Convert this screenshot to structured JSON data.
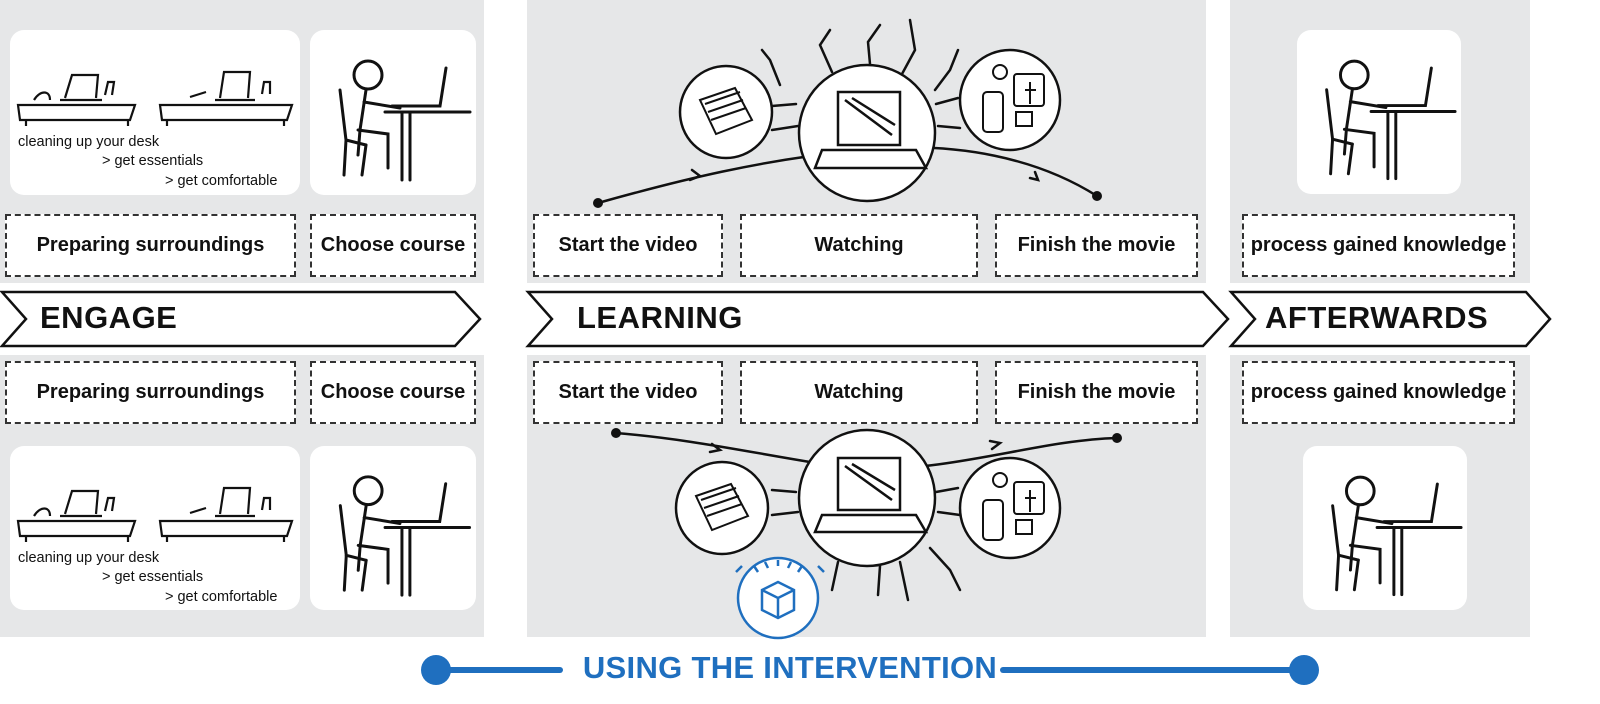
{
  "phases": {
    "engage": "ENGAGE",
    "learning": "LEARNING",
    "afterwards": "AFTERWARDS"
  },
  "top_row": {
    "engage_steps": [
      "Preparing surroundings",
      "Choose course"
    ],
    "learning_steps": [
      "Start the video",
      "Watching",
      "Finish the movie"
    ],
    "afterwards_steps": [
      "process gained knowledge"
    ],
    "desk_caption": [
      "cleaning up your desk",
      "> get essentials",
      "> get comfortable"
    ]
  },
  "bottom_row": {
    "engage_steps": [
      "Preparing surroundings",
      "Choose course"
    ],
    "learning_steps": [
      "Start the video",
      "Watching",
      "Finish the movie"
    ],
    "afterwards_steps": [
      "process gained knowledge"
    ],
    "desk_caption": [
      "cleaning up your desk",
      "> get essentials",
      "> get comfortable"
    ]
  },
  "footer": {
    "title": "USING THE INTERVENTION"
  },
  "colors": {
    "panel_bg": "#e6e7e8",
    "accent_blue": "#1f6fbf",
    "ink": "#111111"
  },
  "icons": [
    "desk-sketch-icon",
    "student-at-laptop-icon",
    "notebook-icon",
    "laptop-icon",
    "social-media-icon",
    "intervention-box-icon"
  ]
}
